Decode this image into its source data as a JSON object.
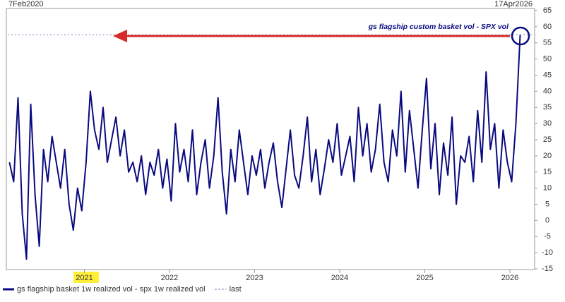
{
  "chart_data": {
    "type": "line",
    "start_label": "7Feb2020",
    "end_label": "17Apr2026",
    "annotation": "gs flagship custom basket vol - SPX vol",
    "x": [
      2020.12,
      2020.17,
      2020.22,
      2020.27,
      2020.32,
      2020.37,
      2020.42,
      2020.47,
      2020.52,
      2020.57,
      2020.62,
      2020.67,
      2020.72,
      2020.77,
      2020.82,
      2020.87,
      2020.92,
      2020.97,
      2021.02,
      2021.07,
      2021.12,
      2021.17,
      2021.22,
      2021.27,
      2021.32,
      2021.37,
      2021.42,
      2021.47,
      2021.52,
      2021.57,
      2021.62,
      2021.67,
      2021.72,
      2021.77,
      2021.82,
      2021.87,
      2021.92,
      2021.97,
      2022.02,
      2022.07,
      2022.12,
      2022.17,
      2022.22,
      2022.27,
      2022.32,
      2022.37,
      2022.42,
      2022.47,
      2022.52,
      2022.57,
      2022.62,
      2022.67,
      2022.72,
      2022.77,
      2022.82,
      2022.87,
      2022.92,
      2022.97,
      2023.02,
      2023.07,
      2023.12,
      2023.17,
      2023.22,
      2023.27,
      2023.32,
      2023.37,
      2023.42,
      2023.47,
      2023.52,
      2023.57,
      2023.62,
      2023.67,
      2023.72,
      2023.77,
      2023.82,
      2023.87,
      2023.92,
      2023.97,
      2024.02,
      2024.07,
      2024.12,
      2024.17,
      2024.22,
      2024.27,
      2024.32,
      2024.37,
      2024.42,
      2024.47,
      2024.52,
      2024.57,
      2024.62,
      2024.67,
      2024.72,
      2024.77,
      2024.82,
      2024.87,
      2024.92,
      2024.97,
      2025.02,
      2025.07,
      2025.12,
      2025.17,
      2025.22,
      2025.27,
      2025.32,
      2025.37,
      2025.42,
      2025.47,
      2025.52,
      2025.57,
      2025.62,
      2025.67,
      2025.72,
      2025.77,
      2025.82,
      2025.87,
      2025.92,
      2025.97,
      2026.02,
      2026.07,
      2026.12
    ],
    "series": [
      {
        "name": "gs flagship basket 1w realized vol - spx 1w realized vol",
        "color": "#0a0a80",
        "values": [
          18,
          12,
          38,
          2,
          -12,
          36,
          8,
          -8,
          22,
          12,
          26,
          18,
          10,
          22,
          5,
          -3,
          10,
          3,
          18,
          40,
          28,
          22,
          35,
          18,
          25,
          32,
          20,
          28,
          15,
          18,
          12,
          20,
          8,
          18,
          14,
          22,
          10,
          19,
          6,
          30,
          15,
          22,
          12,
          28,
          8,
          18,
          25,
          10,
          20,
          38,
          15,
          2,
          22,
          12,
          28,
          18,
          8,
          20,
          14,
          22,
          10,
          18,
          24,
          12,
          4,
          16,
          28,
          14,
          10,
          20,
          32,
          12,
          22,
          8,
          16,
          25,
          18,
          30,
          14,
          20,
          26,
          12,
          35,
          20,
          30,
          15,
          22,
          36,
          18,
          12,
          28,
          20,
          40,
          15,
          34,
          22,
          10,
          28,
          44,
          16,
          30,
          8,
          24,
          14,
          32,
          5,
          20,
          18,
          26,
          12,
          34,
          18,
          46,
          22,
          30,
          10,
          28,
          18,
          12,
          30,
          57.5
        ]
      }
    ],
    "last": {
      "name": "last",
      "value": 57.5,
      "color": "#7a7fbf"
    },
    "xlim": [
      2020.1,
      2026.29
    ],
    "xticks": [
      2021,
      2022,
      2023,
      2024,
      2025,
      2026
    ],
    "ylim": [
      -15,
      65
    ],
    "yticks": [
      -15,
      -10,
      -5,
      0,
      5,
      10,
      15,
      20,
      25,
      30,
      35,
      40,
      45,
      50,
      55,
      60,
      65
    ]
  }
}
